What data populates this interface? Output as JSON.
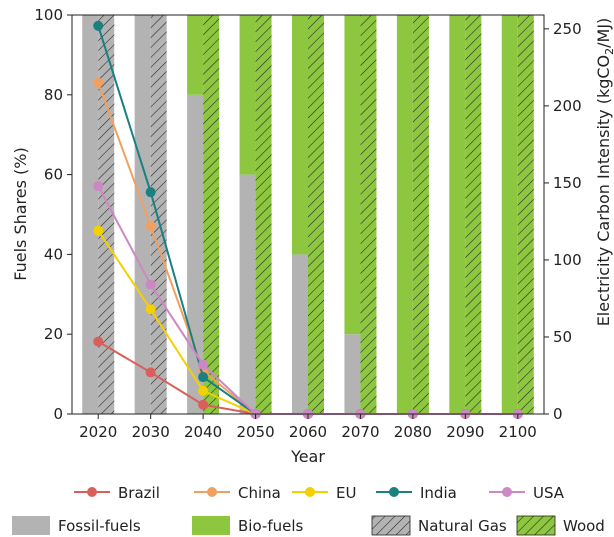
{
  "chart_data": {
    "type": "bar",
    "title": "",
    "xlabel": "Year",
    "ylabel": "Fuels Shares (%)",
    "y2label_main": "Electricity Carbon Intensity (kgCO",
    "y2label_sub": "2",
    "y2label_tail": "/MJ)",
    "categories": [
      "2020",
      "2030",
      "2040",
      "2050",
      "2060",
      "2070",
      "2080",
      "2090",
      "2100"
    ],
    "ylim": [
      0,
      100
    ],
    "y2lim": [
      0,
      259
    ],
    "yticks": [
      "0",
      "20",
      "40",
      "60",
      "80",
      "100"
    ],
    "y2ticks": [
      "0",
      "50",
      "100",
      "150",
      "200",
      "250"
    ],
    "bar_series": [
      {
        "name": "Fossil-fuels",
        "color": "#b3b3b3",
        "hatch": false,
        "values": [
          100,
          100,
          80,
          60,
          40,
          20,
          0,
          0,
          0
        ]
      },
      {
        "name": "Bio-fuels",
        "color": "#8dc63f",
        "hatch": false,
        "values": [
          0,
          0,
          20,
          40,
          60,
          80,
          100,
          100,
          100
        ]
      },
      {
        "name": "Natural Gas",
        "color": "#b3b3b3",
        "hatch": true,
        "values": [
          100,
          100,
          0,
          0,
          0,
          0,
          0,
          0,
          0
        ]
      },
      {
        "name": "Wood",
        "color": "#8dc63f",
        "hatch": true,
        "values": [
          0,
          0,
          100,
          100,
          100,
          100,
          100,
          100,
          100
        ]
      }
    ],
    "line_series": [
      {
        "name": "Brazil",
        "color": "#d9605a",
        "values": [
          47,
          27,
          6,
          0,
          0,
          0,
          0,
          0,
          0
        ]
      },
      {
        "name": "China",
        "color": "#f0a060",
        "values": [
          215,
          122,
          28,
          0,
          0,
          0,
          0,
          0,
          0
        ]
      },
      {
        "name": "EU",
        "color": "#f5d000",
        "values": [
          119,
          68,
          15,
          0,
          0,
          0,
          0,
          0,
          0
        ]
      },
      {
        "name": "India",
        "color": "#1a8080",
        "values": [
          252,
          144,
          24,
          0,
          0,
          0,
          0,
          0,
          0
        ]
      },
      {
        "name": "USA",
        "color": "#cc88c4",
        "values": [
          148,
          84,
          32,
          0,
          0,
          0,
          0,
          0,
          0
        ]
      }
    ],
    "legend_placement": "bottom",
    "grid": false
  }
}
